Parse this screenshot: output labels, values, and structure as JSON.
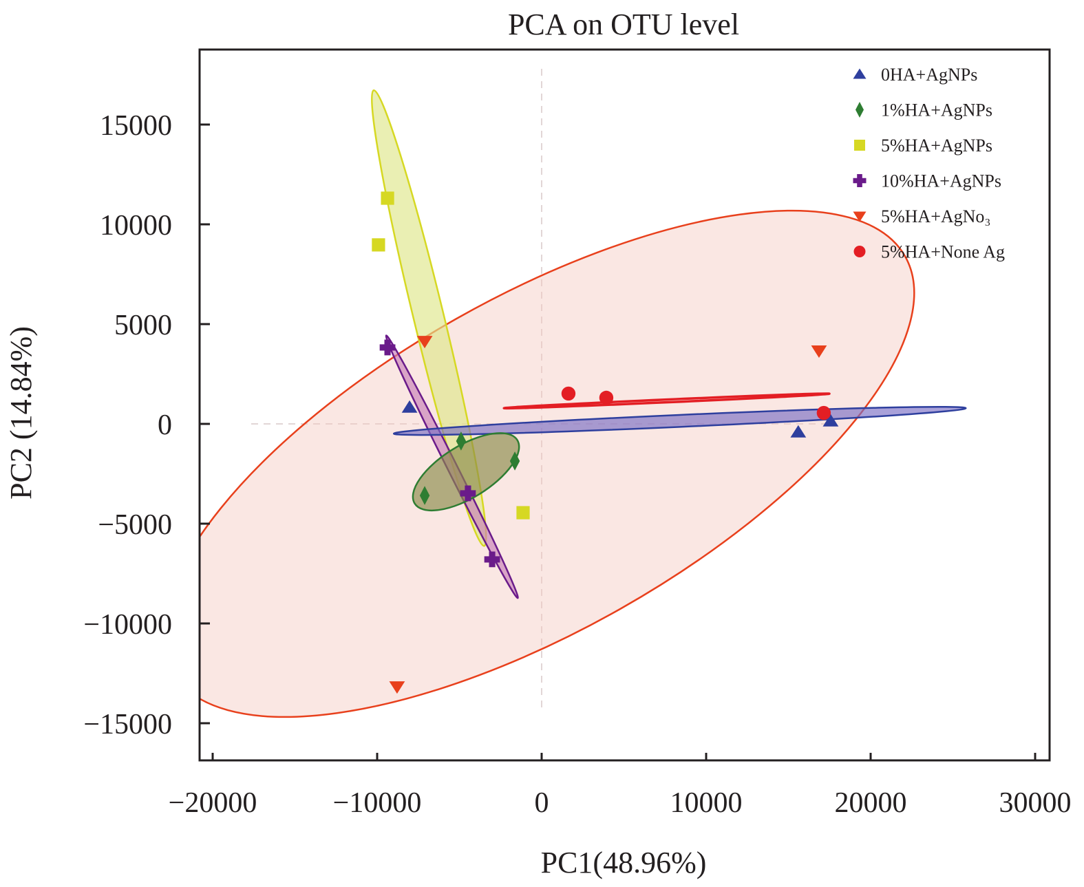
{
  "chart_data": {
    "type": "scatter",
    "title": "PCA on  OTU level",
    "xlabel": "PC1(48.96%)",
    "ylabel": "PC2 (14.84%)",
    "xlim": [
      -21000,
      31000
    ],
    "ylim": [
      -17000,
      18500
    ],
    "xticks": [
      -20000,
      -10000,
      0,
      10000,
      20000,
      30000
    ],
    "yticks": [
      -15000,
      -10000,
      -5000,
      0,
      5000,
      10000,
      15000
    ],
    "xtick_labels": [
      "−20000",
      "−10000",
      "0",
      "10000",
      "20000",
      "30000"
    ],
    "ytick_labels": [
      "−15000",
      "−10000",
      "−5000",
      "0",
      "5000",
      "10000",
      "15000"
    ],
    "grid": false,
    "reference_lines": {
      "x": 0,
      "y": 0,
      "style": "dashed"
    },
    "legend_position": "top-right",
    "series": [
      {
        "name": "0HA+AgNPs",
        "marker": "triangle-up",
        "color": "#2e3f9e",
        "fill": "#7b6fc4",
        "points": [
          [
            -8030,
            830
          ],
          [
            15600,
            -410
          ],
          [
            17570,
            140
          ]
        ],
        "ellipse": {
          "cx": 8400,
          "cy": 150,
          "rx": 17400,
          "ry": 300,
          "angle_deg": 2.1
        }
      },
      {
        "name": "1%HA+AgNPs",
        "marker": "diamond",
        "color": "#2e7d32",
        "fill": "#8a8a4a",
        "points": [
          [
            -4900,
            -860
          ],
          [
            -1630,
            -1860
          ],
          [
            -7110,
            -3590
          ]
        ],
        "ellipse": {
          "cx": -4600,
          "cy": -2400,
          "rx": 3500,
          "ry": 1350,
          "angle_deg": 27
        }
      },
      {
        "name": "5%HA+AgNPs",
        "marker": "square",
        "color": "#d6d823",
        "fill": "#dfe68a",
        "points": [
          [
            -9370,
            11310
          ],
          [
            -9920,
            8970
          ],
          [
            -1130,
            -4450
          ]
        ],
        "ellipse": {
          "cx": -6850,
          "cy": 5300,
          "rx": 11900,
          "ry": 900,
          "angle_deg": -73.6
        }
      },
      {
        "name": "10%HA+AgNPs",
        "marker": "cross",
        "color": "#6a1b8a",
        "fill": "#c77fb8",
        "points": [
          [
            -9370,
            3830
          ],
          [
            -4480,
            -3480
          ],
          [
            -3010,
            -6790
          ]
        ],
        "ellipse": {
          "cx": -5450,
          "cy": -2150,
          "rx": 7700,
          "ry": 280,
          "angle_deg": -58.7
        }
      },
      {
        "name": "5%HA+AgNo₃",
        "marker": "triangle-down",
        "color": "#e8401c",
        "fill": "#f4c9c0",
        "points": [
          [
            -7110,
            4140
          ],
          [
            16860,
            3660
          ],
          [
            -8790,
            -13170
          ]
        ],
        "ellipse": {
          "cx": -200,
          "cy": -2000,
          "rx": 24600,
          "ry": 8600,
          "angle_deg": 25
        }
      },
      {
        "name": "5%HA+None Ag",
        "marker": "circle",
        "color": "#e31e24",
        "fill": "#e31e24",
        "points": [
          [
            1630,
            1520
          ],
          [
            3930,
            1310
          ],
          [
            17150,
            550
          ]
        ],
        "ellipse": {
          "cx": 7600,
          "cy": 1150,
          "rx": 9900,
          "ry": 60,
          "angle_deg": 2.1
        }
      }
    ]
  }
}
